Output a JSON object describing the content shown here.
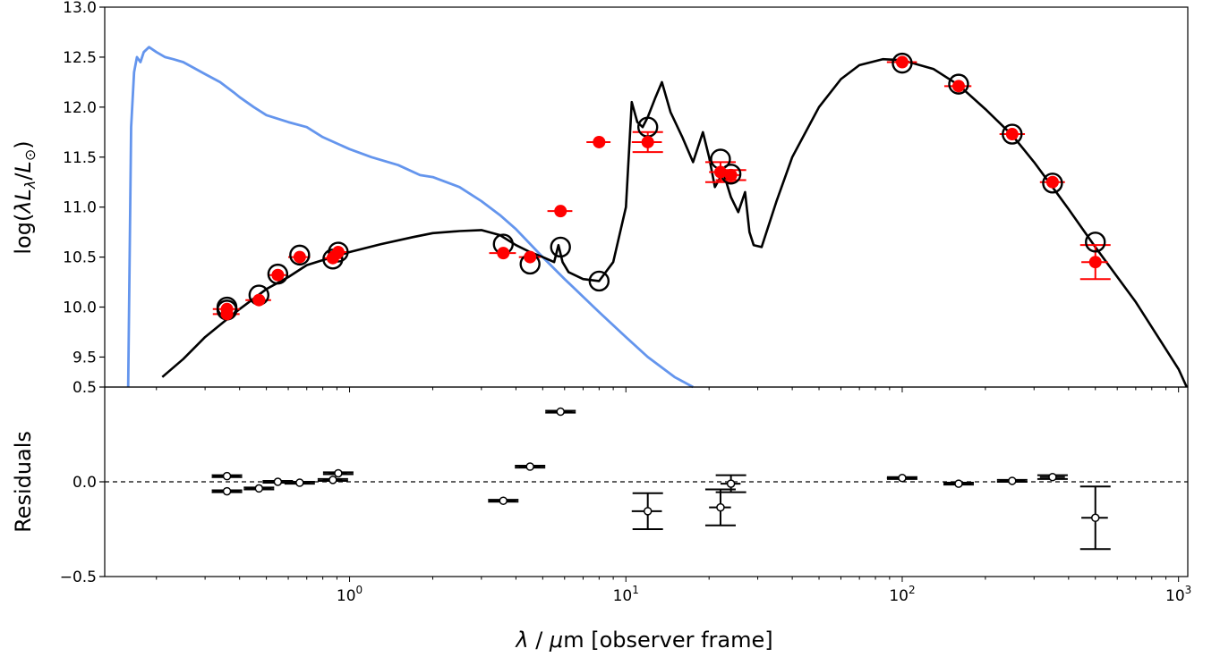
{
  "chart_data": [
    {
      "panel": "sed",
      "type": "line",
      "xscale": "log",
      "xlim": [
        0.13,
        1080
      ],
      "ylim": [
        9.2,
        13.0
      ],
      "ylabel_parts": [
        "log(",
        "λL",
        "λ",
        "/",
        "L",
        "⊙",
        ")"
      ],
      "yticks": [
        "9.5",
        "10.0",
        "10.5",
        "11.0",
        "11.5",
        "12.0",
        "12.5",
        "13.0"
      ],
      "grid": false,
      "legend": "none",
      "colors": {
        "model": "#000000",
        "stellar": "#6495ed",
        "observed": "#ff0000",
        "model_photometry": "#000000"
      },
      "series": [
        {
          "kind": "stellar_unattenuated",
          "x": [
            0.158,
            0.162,
            0.166,
            0.17,
            0.175,
            0.18,
            0.188,
            0.2,
            0.215,
            0.23,
            0.25,
            0.27,
            0.3,
            0.34,
            0.38,
            0.4,
            0.45,
            0.5,
            0.6,
            0.7,
            0.8,
            1.0,
            1.2,
            1.5,
            1.8,
            2.0,
            2.5,
            3.0,
            3.5,
            4.0,
            5.0,
            6.0,
            8.0,
            10.0,
            12.0,
            15.0,
            17.5
          ],
          "y": [
            9.2,
            11.8,
            12.35,
            12.5,
            12.45,
            12.55,
            12.6,
            12.55,
            12.5,
            12.48,
            12.45,
            12.4,
            12.33,
            12.25,
            12.15,
            12.1,
            12.0,
            11.92,
            11.85,
            11.8,
            11.7,
            11.58,
            11.5,
            11.42,
            11.32,
            11.3,
            11.2,
            11.06,
            10.92,
            10.78,
            10.5,
            10.28,
            9.95,
            9.7,
            9.5,
            9.3,
            9.2
          ]
        },
        {
          "kind": "total_model",
          "x": [
            0.21,
            0.25,
            0.3,
            0.35,
            0.4,
            0.5,
            0.6,
            0.7,
            0.8,
            1.0,
            1.3,
            1.7,
            2.0,
            2.5,
            3.0,
            3.5,
            4.0,
            4.5,
            5.0,
            5.5,
            5.7,
            5.9,
            6.2,
            7.0,
            8.0,
            9.0,
            10.0,
            10.5,
            11.0,
            11.5,
            12.0,
            12.8,
            13.5,
            14.5,
            16.0,
            17.5,
            19.0,
            20.0,
            21.0,
            22.5,
            24.0,
            25.5,
            27.0,
            28.0,
            29.0,
            31.0,
            35.0,
            40.0,
            50.0,
            60.0,
            70.0,
            85.0,
            100.0,
            130.0,
            160.0,
            200.0,
            250.0,
            300.0,
            350.0,
            400.0,
            500.0,
            700.0,
            1000.0,
            1070.0
          ],
          "y": [
            9.3,
            9.48,
            9.7,
            9.85,
            9.98,
            10.18,
            10.3,
            10.42,
            10.47,
            10.55,
            10.63,
            10.7,
            10.74,
            10.76,
            10.77,
            10.72,
            10.62,
            10.55,
            10.5,
            10.45,
            10.62,
            10.45,
            10.35,
            10.28,
            10.26,
            10.45,
            11.0,
            12.05,
            11.85,
            11.8,
            11.9,
            12.1,
            12.25,
            11.95,
            11.7,
            11.45,
            11.75,
            11.5,
            11.2,
            11.35,
            11.1,
            10.95,
            11.15,
            10.75,
            10.62,
            10.6,
            11.05,
            11.5,
            12.0,
            12.28,
            12.42,
            12.48,
            12.47,
            12.38,
            12.22,
            11.98,
            11.72,
            11.45,
            11.2,
            10.98,
            10.6,
            10.05,
            9.38,
            9.2
          ]
        }
      ],
      "observed": {
        "x": [
          0.36,
          0.36,
          0.47,
          0.55,
          0.66,
          0.87,
          0.91,
          3.6,
          4.5,
          5.8,
          8.0,
          12.0,
          22.0,
          24.0,
          100.0,
          160.0,
          250.0,
          350.0,
          500.0
        ],
        "y": [
          9.98,
          9.93,
          10.07,
          10.32,
          10.5,
          10.49,
          10.55,
          10.54,
          10.5,
          10.96,
          11.65,
          11.65,
          11.35,
          11.32,
          12.45,
          12.21,
          11.73,
          11.25,
          10.45
        ],
        "yerr": [
          0.02,
          0.02,
          0.02,
          0.02,
          0.02,
          0.02,
          0.02,
          0.02,
          0.02,
          0.02,
          0.02,
          0.1,
          0.1,
          0.05,
          0.02,
          0.02,
          0.02,
          0.03,
          0.17
        ],
        "xlo": [
          0.32,
          0.32,
          0.42,
          0.51,
          0.6,
          0.8,
          0.84,
          3.2,
          4.1,
          5.2,
          7.2,
          10.5,
          20.0,
          22.0,
          88.0,
          142.0,
          225.0,
          315.0,
          445.0
        ],
        "xhi": [
          0.4,
          0.4,
          0.52,
          0.59,
          0.72,
          0.94,
          0.98,
          4.0,
          4.9,
          6.4,
          8.8,
          13.5,
          24.0,
          26.0,
          113.0,
          178.0,
          278.0,
          388.0,
          555.0
        ]
      },
      "model_photometry": {
        "x": [
          0.36,
          0.36,
          0.47,
          0.55,
          0.66,
          0.87,
          0.91,
          3.6,
          4.5,
          5.8,
          8.0,
          12.0,
          22.0,
          24.0,
          100.0,
          160.0,
          250.0,
          350.0,
          500.0
        ],
        "y": [
          10.0,
          9.97,
          10.12,
          10.33,
          10.52,
          10.48,
          10.55,
          10.63,
          10.43,
          10.6,
          10.26,
          11.8,
          11.48,
          11.33,
          12.44,
          12.23,
          11.73,
          11.24,
          10.65
        ]
      }
    },
    {
      "panel": "residuals",
      "type": "scatter",
      "xscale": "log",
      "xlim": [
        0.13,
        1080
      ],
      "ylim": [
        -0.5,
        0.5
      ],
      "xlabel_parts": [
        "λ",
        " / ",
        "μ",
        "m [observer frame]"
      ],
      "ylabel": "Residuals",
      "yticks": [
        "−0.5",
        "0.0",
        "0.5"
      ],
      "xticks": [
        {
          "value": 1,
          "base": "10",
          "exp": "0"
        },
        {
          "value": 10,
          "base": "10",
          "exp": "1"
        },
        {
          "value": 100,
          "base": "10",
          "exp": "2"
        },
        {
          "value": 1000,
          "base": "10",
          "exp": "3"
        }
      ],
      "reference_line": 0.0,
      "x": [
        0.36,
        0.36,
        0.47,
        0.55,
        0.66,
        0.87,
        0.91,
        3.6,
        4.5,
        5.8,
        12.0,
        22.0,
        24.0,
        100.0,
        160.0,
        250.0,
        350.0,
        500.0
      ],
      "y": [
        0.03,
        -0.05,
        -0.035,
        0.0,
        -0.005,
        0.01,
        0.045,
        -0.1,
        0.08,
        0.37,
        -0.155,
        -0.135,
        -0.01,
        0.02,
        -0.01,
        0.005,
        0.025,
        -0.19
      ],
      "yerr": [
        0.005,
        0.005,
        0.005,
        0.005,
        0.005,
        0.005,
        0.005,
        0.005,
        0.005,
        0.005,
        0.095,
        0.095,
        0.045,
        0.005,
        0.005,
        0.005,
        0.01,
        0.165
      ],
      "xlo": [
        0.32,
        0.32,
        0.42,
        0.51,
        0.6,
        0.8,
        0.84,
        3.2,
        4.1,
        5.2,
        10.5,
        20.0,
        22.0,
        88.0,
        142.0,
        225.0,
        315.0,
        445.0
      ],
      "xhi": [
        0.4,
        0.4,
        0.52,
        0.59,
        0.72,
        0.94,
        0.98,
        4.0,
        4.9,
        6.4,
        13.5,
        24.0,
        26.0,
        113.0,
        178.0,
        278.0,
        388.0,
        555.0
      ]
    }
  ]
}
